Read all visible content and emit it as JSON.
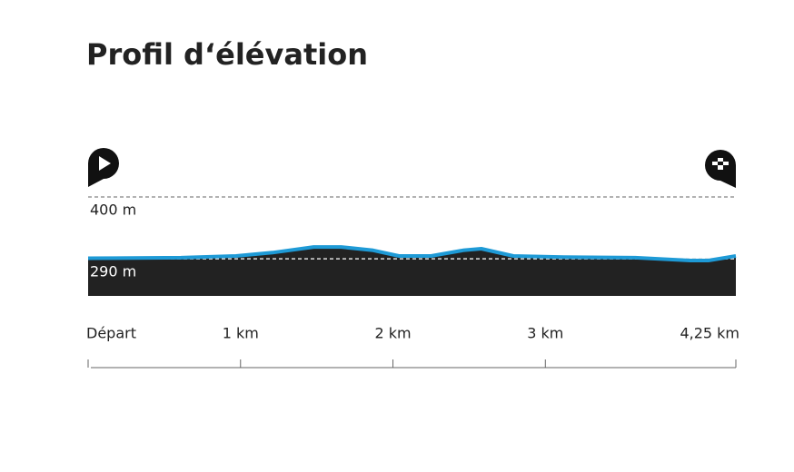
{
  "chart_data": {
    "type": "area",
    "title": "Profil d‘élévation",
    "x": [
      0,
      0.61,
      0.97,
      1.21,
      1.48,
      1.66,
      1.87,
      2.04,
      2.25,
      2.46,
      2.58,
      2.79,
      3.12,
      3.59,
      3.95,
      4.07,
      4.25
    ],
    "values": [
      291,
      292,
      295,
      301,
      311,
      311,
      305,
      295,
      295,
      305,
      308,
      295,
      293,
      292,
      287,
      287,
      295
    ],
    "line_color": "#1e9ad6",
    "fill_color": "#222222",
    "xlim": [
      0,
      4.25
    ],
    "xticks": [
      {
        "value": 0,
        "label": "Départ"
      },
      {
        "value": 1,
        "label": "1 km"
      },
      {
        "value": 2,
        "label": "2 km"
      },
      {
        "value": 3,
        "label": "3 km"
      },
      {
        "value": 4.25,
        "label": "4,25 km"
      }
    ],
    "ylim": [
      224,
      400
    ],
    "yticks": [
      {
        "value": 400,
        "label": "400 m"
      },
      {
        "value": 290,
        "label": "290 m"
      }
    ],
    "grid": true
  }
}
